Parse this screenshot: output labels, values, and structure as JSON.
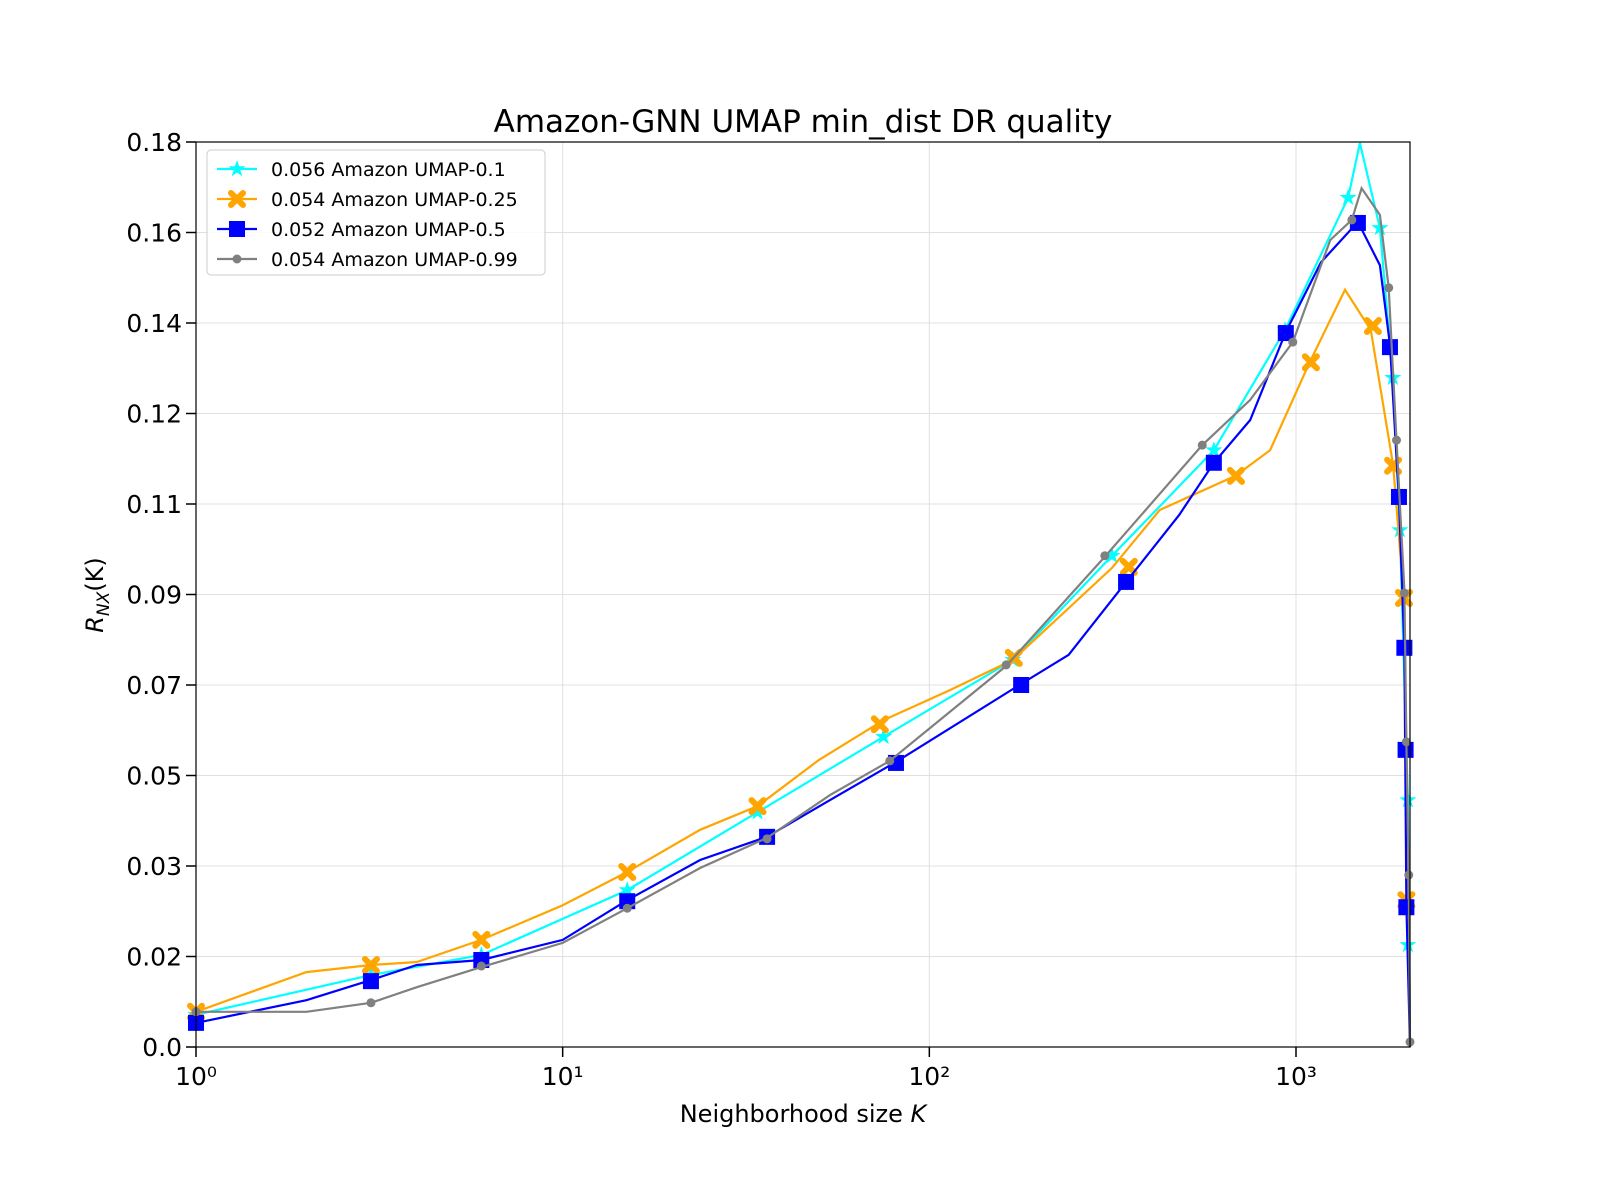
{
  "chart_data": {
    "type": "line",
    "title": "Amazon-GNN UMAP min_dist DR quality",
    "xlabel": [
      "Neighborhood size",
      "K"
    ],
    "ylabel": [
      "R",
      "NX",
      "(K)"
    ],
    "xscale": "log",
    "grid": true,
    "legend": "upper left",
    "xlim": [
      1,
      2046
    ],
    "ylim": [
      0,
      0.18
    ],
    "xticks": [
      {
        "value": 1,
        "label": "10⁰"
      },
      {
        "value": 10,
        "label": "10¹"
      },
      {
        "value": 100,
        "label": "10²"
      },
      {
        "value": 1000,
        "label": "10³"
      }
    ],
    "yticks": [
      {
        "value": 0,
        "label": "0.0"
      },
      {
        "value": 0.018,
        "label": "0.02"
      },
      {
        "value": 0.036,
        "label": "0.03"
      },
      {
        "value": 0.054,
        "label": "0.05"
      },
      {
        "value": 0.072,
        "label": "0.07"
      },
      {
        "value": 0.09,
        "label": "0.09"
      },
      {
        "value": 0.108,
        "label": "0.11"
      },
      {
        "value": 0.126,
        "label": "0.12"
      },
      {
        "value": 0.144,
        "label": "0.14"
      },
      {
        "value": 0.162,
        "label": "0.16"
      },
      {
        "value": 0.18,
        "label": "0.18"
      }
    ],
    "series": [
      {
        "name": "0.056 Amazon UMAP-0.1",
        "color": "#00ffff",
        "marker": "star",
        "x": [
          1,
          3,
          6,
          15,
          34,
          75,
          169,
          315,
          597,
          933,
          1387,
          1494,
          1694,
          1837,
          1920,
          2019,
          2046
        ],
        "values": [
          0.0064,
          0.0143,
          0.0183,
          0.0312,
          0.0467,
          0.0617,
          0.077,
          0.0977,
          0.1187,
          0.1426,
          0.1689,
          0.1798,
          0.1629,
          0.1331,
          0.1028,
          0.0491,
          0
        ],
        "markers": {
          "x": [
            1,
            3,
            6,
            15,
            34,
            75,
            169,
            315,
            597,
            933,
            1387,
            1694,
            1837,
            1920,
            2019,
            2019
          ],
          "values": [
            0.0064,
            0.0143,
            0.0183,
            0.0312,
            0.0467,
            0.0617,
            0.077,
            0.0977,
            0.1187,
            0.1426,
            0.1689,
            0.1629,
            0.1331,
            0.1028,
            0.0491,
            0.0203
          ]
        }
      },
      {
        "name": "0.054 Amazon UMAP-0.25",
        "color": "#ffa500",
        "marker": "x",
        "x": [
          1,
          2,
          3,
          4,
          6,
          10,
          15,
          23.7,
          34,
          50,
          75,
          114,
          169,
          315,
          425,
          684,
          850,
          1090,
          1360,
          1600,
          1840,
          1970,
          2000,
          2046
        ],
        "values": [
          0.007,
          0.0149,
          0.0163,
          0.0169,
          0.0213,
          0.0282,
          0.0348,
          0.0432,
          0.0479,
          0.0571,
          0.065,
          0.071,
          0.077,
          0.0953,
          0.1068,
          0.1136,
          0.1187,
          0.1362,
          0.1506,
          0.1426,
          0.1158,
          0.0889,
          0.0591,
          0
        ],
        "markers": {
          "x": [
            1,
            3,
            6,
            15,
            34,
            73.3,
            170,
            350,
            686,
            1098,
            1621,
            1840,
            1970,
            2000
          ],
          "values": [
            0.007,
            0.0163,
            0.0213,
            0.0348,
            0.0479,
            0.0642,
            0.0774,
            0.0955,
            0.1136,
            0.1362,
            0.1434,
            0.1156,
            0.0893,
            0.0292
          ]
        }
      },
      {
        "name": "0.052 Amazon UMAP-0.5",
        "color": "#0000ff",
        "marker": "square",
        "x": [
          1,
          2,
          3,
          4,
          6,
          10,
          15,
          23.7,
          36.1,
          53.6,
          81.1,
          176,
          240,
          344,
          480,
          597,
          750,
          938,
          1170,
          1475,
          1694,
          1804,
          1909,
          1975,
          2000,
          2046
        ],
        "values": [
          0.0048,
          0.0093,
          0.0133,
          0.0163,
          0.0173,
          0.0213,
          0.0292,
          0.0372,
          0.0418,
          0.0491,
          0.0567,
          0.072,
          0.078,
          0.0925,
          0.1058,
          0.1162,
          0.1247,
          0.1422,
          0.1561,
          0.1641,
          0.1555,
          0.1396,
          0.1088,
          0.079,
          0.0282,
          0
        ],
        "markers": {
          "x": [
            1,
            3,
            6,
            15,
            36.1,
            81.1,
            178,
            344,
            597,
            938,
            1475,
            1804,
            1909,
            1975,
            1990,
            2000
          ],
          "values": [
            0.0048,
            0.0131,
            0.0173,
            0.029,
            0.0418,
            0.0565,
            0.072,
            0.0925,
            0.1162,
            0.142,
            0.1639,
            0.1392,
            0.1094,
            0.0794,
            0.0591,
            0.0278
          ]
        }
      },
      {
        "name": "0.054 Amazon UMAP-0.99",
        "color": "#808080",
        "marker": "circle",
        "x": [
          1,
          2,
          3,
          4,
          6,
          10,
          15,
          23.7,
          36.1,
          53.6,
          78,
          162,
          301,
          555,
          750,
          980,
          1240,
          1420,
          1510,
          1694,
          1790,
          1880,
          1975,
          2000,
          2030,
          2046
        ],
        "values": [
          0.007,
          0.007,
          0.0088,
          0.0119,
          0.0159,
          0.0207,
          0.0276,
          0.0356,
          0.0416,
          0.0501,
          0.0569,
          0.0758,
          0.0975,
          0.1197,
          0.1287,
          0.1402,
          0.1605,
          0.1645,
          0.1708,
          0.1655,
          0.151,
          0.1207,
          0.0909,
          0.0601,
          0.0342,
          0.001
        ],
        "markers": {
          "x": [
            1,
            3,
            6,
            15,
            36.1,
            78,
            162,
            301,
            555,
            980,
            1420,
            1790,
            1880,
            1975,
            2000,
            2030,
            2046
          ],
          "values": [
            0.007,
            0.0088,
            0.0161,
            0.0276,
            0.0414,
            0.0569,
            0.076,
            0.0977,
            0.1197,
            0.1402,
            0.1645,
            0.151,
            0.1207,
            0.0903,
            0.0607,
            0.0342,
            0.001
          ]
        }
      }
    ]
  }
}
